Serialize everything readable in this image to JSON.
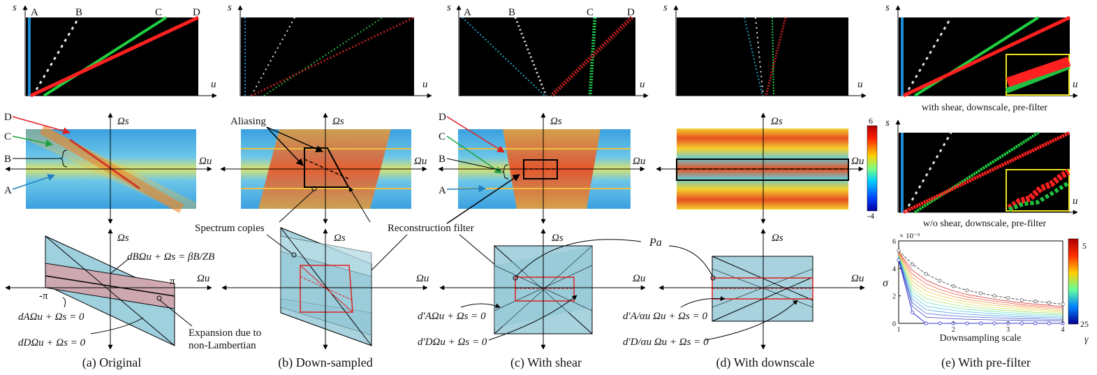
{
  "captions": {
    "a": "(a) Original",
    "b": "(b) Down-sampled",
    "c": "(c) With shear",
    "d": "(d) With downscale",
    "e": "(e) With pre-filter"
  },
  "axes": {
    "s": "s",
    "u": "u",
    "omega_s": "Ωs",
    "omega_u": "Ωu",
    "pi": "π",
    "neg_pi": "-π"
  },
  "epi_labels": [
    "A",
    "B",
    "C",
    "D"
  ],
  "annotations": {
    "aliasing": "Aliasing",
    "spectrum_copies": "Spectrum copies",
    "reconstruction_filter": "Reconstruction filter",
    "p_a": "Pa",
    "expansion": "Expansion due to",
    "expansion_2": "non-Lambertian",
    "with_shear": "with shear, downscale, pre-filter",
    "wo_shear": "w/o shear, downscale, pre-filter"
  },
  "equations": {
    "b_line": "dBΩu + Ωs = βB/ZB",
    "a_line": "dAΩu + Ωs = 0",
    "d_line": "dDΩu + Ωs = 0",
    "a_prime": "d'AΩu + Ωs = 0",
    "d_prime": "d'DΩu + Ωs = 0",
    "a_alpha": "d'A/αu Ωu + Ωs = 0",
    "d_alpha": "d'D/αu Ωu + Ωs = 0"
  },
  "colorbar": {
    "max": "6",
    "min": "-4"
  },
  "chart_data": {
    "type": "line",
    "xlabel": "Downsampling scale",
    "ylabel": "σ",
    "y_multiplier": "× 10⁻³",
    "xlim": [
      1,
      4
    ],
    "ylim": [
      0,
      6
    ],
    "xticks": [
      1,
      2,
      3,
      4
    ],
    "yticks": [
      0,
      2,
      4,
      6
    ],
    "colorbar_label": "γ",
    "colorbar_range": [
      5,
      25
    ],
    "series": [
      {
        "name": "",
        "style": "dashed-black-circles",
        "color": "#555555",
        "x": [
          1,
          1.25,
          1.5,
          1.75,
          2,
          2.25,
          2.5,
          2.75,
          3,
          3.25,
          3.5,
          3.75,
          4
        ],
        "values": [
          5.3,
          4.3,
          3.6,
          3.1,
          2.7,
          2.4,
          2.2,
          2.0,
          1.85,
          1.7,
          1.6,
          1.5,
          1.4
        ]
      },
      {
        "name": "",
        "style": "blue-circles",
        "color": "#3333cc",
        "x": [
          1,
          1.25,
          1.5,
          1.75,
          2,
          2.25,
          2.5,
          2.75,
          3,
          3.25,
          3.5,
          3.75,
          4
        ],
        "values": [
          4.6,
          0.8,
          0,
          0,
          0,
          0,
          0,
          0,
          0,
          0,
          0,
          0,
          0
        ]
      }
    ]
  }
}
